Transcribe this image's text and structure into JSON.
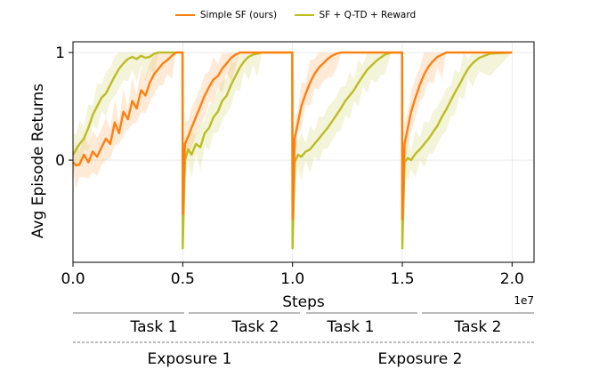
{
  "chart_data": {
    "type": "line",
    "xlabel": "Steps",
    "ylabel": "Avg Episode Returns",
    "x_offset_label": "1e7",
    "xlim": [
      0,
      21000000
    ],
    "ylim": [
      -0.95,
      1.1
    ],
    "xticks": [
      0,
      5000000,
      10000000,
      15000000,
      20000000
    ],
    "xtick_labels": [
      "0.0",
      "0.5",
      "1.0",
      "1.5",
      "2.0"
    ],
    "yticks": [
      0,
      1
    ],
    "ytick_labels": [
      "0",
      "1"
    ],
    "grid": true,
    "legend_position": "top-center",
    "colors": {
      "simple_sf": "#ff7f0e",
      "sf_qtd": "#bcbd22"
    },
    "series": [
      {
        "name": "Simple SF (ours)",
        "x": [
          0,
          150000,
          300000,
          500000,
          700000,
          900000,
          1100000,
          1300000,
          1500000,
          1700000,
          1900000,
          2100000,
          2300000,
          2500000,
          2700000,
          2900000,
          3100000,
          3300000,
          3500000,
          3700000,
          3900000,
          4100000,
          4300000,
          4500000,
          4700000,
          4990000,
          5000000,
          5100000,
          5250000,
          5400000,
          5600000,
          5800000,
          6000000,
          6200000,
          6400000,
          6600000,
          6800000,
          7000000,
          7200000,
          7400000,
          7600000,
          7800000,
          8000000,
          8500000,
          9000000,
          9990000,
          10000000,
          10100000,
          10250000,
          10400000,
          10600000,
          10800000,
          11000000,
          11200000,
          11400000,
          11600000,
          11800000,
          12000000,
          12200000,
          12500000,
          13000000,
          13500000,
          14990000,
          15000000,
          15100000,
          15250000,
          15400000,
          15600000,
          15800000,
          16000000,
          16200000,
          16400000,
          16600000,
          16800000,
          17000000,
          17500000,
          18000000,
          19000000,
          20000000
        ],
        "y": [
          -0.02,
          -0.05,
          -0.04,
          0.05,
          -0.02,
          0.08,
          0.03,
          0.12,
          0.2,
          0.15,
          0.35,
          0.25,
          0.45,
          0.38,
          0.55,
          0.48,
          0.65,
          0.6,
          0.72,
          0.8,
          0.85,
          0.9,
          0.93,
          0.97,
          1.0,
          1.0,
          -0.5,
          0.15,
          0.22,
          0.3,
          0.4,
          0.5,
          0.6,
          0.68,
          0.75,
          0.78,
          0.85,
          0.9,
          0.95,
          0.98,
          1.0,
          1.0,
          1.0,
          1.0,
          1.0,
          1.0,
          -0.55,
          0.2,
          0.35,
          0.5,
          0.62,
          0.72,
          0.8,
          0.86,
          0.9,
          0.94,
          0.97,
          0.99,
          1.0,
          1.0,
          1.0,
          1.0,
          1.0,
          -0.55,
          0.15,
          0.3,
          0.45,
          0.58,
          0.7,
          0.8,
          0.87,
          0.92,
          0.96,
          0.98,
          1.0,
          1.0,
          1.0,
          1.0,
          1.0
        ]
      },
      {
        "name": "SF + Q-TD + Reward",
        "x": [
          0,
          150000,
          300000,
          500000,
          700000,
          900000,
          1100000,
          1300000,
          1500000,
          1700000,
          1900000,
          2100000,
          2300000,
          2500000,
          2700000,
          2900000,
          3100000,
          3300000,
          3500000,
          3700000,
          3900000,
          4100000,
          4400000,
          4700000,
          4990000,
          5000000,
          5100000,
          5250000,
          5400000,
          5600000,
          5800000,
          6000000,
          6200000,
          6400000,
          6600000,
          6800000,
          7000000,
          7200000,
          7400000,
          7600000,
          7800000,
          8000000,
          8200000,
          8400000,
          8600000,
          8800000,
          9000000,
          9500000,
          9990000,
          10000000,
          10100000,
          10250000,
          10400000,
          10600000,
          10800000,
          11000000,
          11200000,
          11400000,
          11600000,
          11800000,
          12000000,
          12200000,
          12400000,
          12600000,
          12800000,
          13000000,
          13200000,
          13400000,
          13600000,
          13800000,
          14000000,
          14200000,
          14500000,
          14990000,
          15000000,
          15100000,
          15250000,
          15400000,
          15600000,
          15800000,
          16000000,
          16200000,
          16400000,
          16600000,
          16800000,
          17000000,
          17200000,
          17400000,
          17600000,
          17800000,
          18000000,
          18200000,
          18500000,
          19000000,
          20000000
        ],
        "y": [
          0.05,
          0.1,
          0.15,
          0.2,
          0.3,
          0.42,
          0.5,
          0.58,
          0.62,
          0.7,
          0.78,
          0.85,
          0.9,
          0.94,
          0.96,
          0.94,
          0.97,
          0.95,
          0.96,
          0.99,
          1.0,
          1.0,
          1.0,
          1.0,
          1.0,
          -0.82,
          0.0,
          0.1,
          0.05,
          0.15,
          0.12,
          0.25,
          0.3,
          0.4,
          0.45,
          0.55,
          0.6,
          0.7,
          0.78,
          0.86,
          0.92,
          0.96,
          0.98,
          0.99,
          1.0,
          1.0,
          1.0,
          1.0,
          1.0,
          -0.82,
          -0.02,
          0.05,
          0.03,
          0.08,
          0.1,
          0.15,
          0.2,
          0.25,
          0.3,
          0.36,
          0.42,
          0.48,
          0.55,
          0.6,
          0.65,
          0.72,
          0.78,
          0.84,
          0.88,
          0.92,
          0.95,
          0.98,
          1.0,
          1.0,
          -0.82,
          -0.02,
          0.02,
          0.0,
          0.06,
          0.1,
          0.15,
          0.2,
          0.26,
          0.32,
          0.4,
          0.47,
          0.55,
          0.63,
          0.7,
          0.78,
          0.85,
          0.9,
          0.95,
          0.99,
          1.0
        ]
      }
    ]
  },
  "task_labels": [
    "Task 1",
    "Task 2",
    "Task 1",
    "Task 2"
  ],
  "exposure_labels": [
    "Exposure 1",
    "Exposure 2"
  ]
}
